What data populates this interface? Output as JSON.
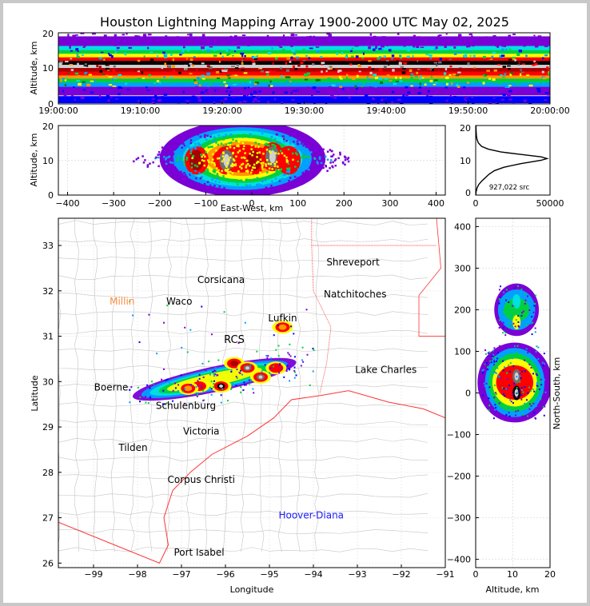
{
  "title": "Houston Lightning Mapping Array 1900-2000 UTC May 02, 2025",
  "colors": {
    "density": [
      "#ffffff",
      "#7a00d6",
      "#0000ff",
      "#00a0ff",
      "#00e0e0",
      "#00d040",
      "#007a10",
      "#ffff00",
      "#ff9900",
      "#ff0000",
      "#aa0000",
      "#000000",
      "#707070",
      "#d0d0d0"
    ],
    "coastline": "#ff3333",
    "counties": "#c4c4c4",
    "city_default": "#000000",
    "city_millin": "#ff8c3c",
    "city_hoover": "#1a1aff"
  },
  "chart_data": [
    {
      "id": "time-height",
      "type": "heatmap",
      "ylabel": "Altitude, km",
      "ylim": [
        0,
        20
      ],
      "yticks": [
        "0",
        "10",
        "20"
      ],
      "xticks": [
        "19:00:00",
        "19:10:00",
        "19:20:00",
        "19:30:00",
        "19:40:00",
        "19:50:00",
        "20:00:00"
      ],
      "layers": [
        {
          "z": 17.5,
          "band": 3.0,
          "level": 1
        },
        {
          "z": 15.5,
          "band": 1.6,
          "level": 4
        },
        {
          "z": 14.5,
          "band": 1.2,
          "level": 5
        },
        {
          "z": 13.5,
          "band": 1.2,
          "level": 7
        },
        {
          "z": 12.5,
          "band": 1.2,
          "level": 9
        },
        {
          "z": 11.3,
          "band": 1.6,
          "level": 11
        },
        {
          "z": 10.5,
          "band": 1.0,
          "level": 13
        },
        {
          "z": 9.5,
          "band": 1.2,
          "level": 10
        },
        {
          "z": 8.5,
          "band": 1.2,
          "level": 9
        },
        {
          "z": 7.5,
          "band": 1.0,
          "level": 8
        },
        {
          "z": 6.5,
          "band": 1.2,
          "level": 5
        },
        {
          "z": 5.3,
          "band": 1.4,
          "level": 3
        },
        {
          "z": 3.6,
          "band": 2.4,
          "level": 1
        },
        {
          "z": 1.2,
          "band": 2.0,
          "level": 2
        }
      ]
    },
    {
      "id": "east-west-altitude",
      "type": "heatmap",
      "xlabel": "East-West, km",
      "ylabel": "Altitude, km",
      "xlim": [
        -420,
        420
      ],
      "ylim": [
        0,
        20
      ],
      "xticks": [
        "−400",
        "−300",
        "−200",
        "−100",
        "0",
        "100",
        "200",
        "300",
        "400"
      ],
      "yticks": [
        "0",
        "10",
        "20"
      ],
      "cores": [
        {
          "x": -120,
          "z": 10,
          "level": 10
        },
        {
          "x": -55,
          "z": 10,
          "level": 12
        },
        {
          "x": 5,
          "z": 10,
          "level": 10
        },
        {
          "x": 45,
          "z": 11,
          "level": 12
        },
        {
          "x": 80,
          "z": 10,
          "level": 9
        }
      ]
    },
    {
      "id": "altitude-histogram",
      "type": "line",
      "xlim": [
        0,
        50000
      ],
      "ylim": [
        0,
        20
      ],
      "xticks": [
        "0",
        "50000"
      ],
      "yticks": [
        "0",
        "10",
        "20"
      ],
      "annotation": "927,022 src",
      "points": [
        [
          50,
          0
        ],
        [
          300,
          1
        ],
        [
          900,
          2
        ],
        [
          2000,
          3
        ],
        [
          4000,
          4
        ],
        [
          6500,
          5
        ],
        [
          9000,
          6
        ],
        [
          12500,
          7
        ],
        [
          19000,
          8
        ],
        [
          30000,
          9
        ],
        [
          44000,
          10
        ],
        [
          48000,
          10.5
        ],
        [
          44000,
          11
        ],
        [
          30000,
          11.7
        ],
        [
          17000,
          12.4
        ],
        [
          8500,
          13.2
        ],
        [
          4000,
          14
        ],
        [
          1800,
          15
        ],
        [
          900,
          16
        ],
        [
          500,
          17
        ],
        [
          350,
          18
        ],
        [
          250,
          19
        ],
        [
          200,
          20
        ]
      ]
    },
    {
      "id": "plan-view",
      "type": "heatmap",
      "xlabel": "Longitude",
      "ylabel": "Latitude",
      "xlim": [
        -99.8,
        -91
      ],
      "ylim": [
        25.9,
        33.6
      ],
      "xticks": [
        "−99",
        "−98",
        "−97",
        "−96",
        "−95",
        "−94",
        "−93",
        "−92",
        "−91"
      ],
      "yticks": [
        "26",
        "27",
        "28",
        "29",
        "30",
        "31",
        "32",
        "33"
      ],
      "cities": [
        {
          "name": "Shreveport",
          "lon": -93.1,
          "lat": 32.56,
          "color": "#000000"
        },
        {
          "name": "Corsicana",
          "lon": -96.1,
          "lat": 32.17,
          "color": "#000000"
        },
        {
          "name": "Millin",
          "lon": -98.35,
          "lat": 31.7,
          "color": "#ff8c3c"
        },
        {
          "name": "Waco",
          "lon": -97.05,
          "lat": 31.7,
          "color": "#000000"
        },
        {
          "name": "Natchitoches",
          "lon": -93.05,
          "lat": 31.86,
          "color": "#000000"
        },
        {
          "name": "Lufkin",
          "lon": -94.7,
          "lat": 31.33,
          "color": "#000000"
        },
        {
          "name": "RCS",
          "lon": -95.8,
          "lat": 30.85,
          "color": "#000000"
        },
        {
          "name": "Lake Charles",
          "lon": -92.35,
          "lat": 30.19,
          "color": "#000000"
        },
        {
          "name": "Boerne",
          "lon": -98.6,
          "lat": 29.8,
          "color": "#000000"
        },
        {
          "name": "Schulenburg",
          "lon": -96.9,
          "lat": 29.4,
          "color": "#000000"
        },
        {
          "name": "Victoria",
          "lon": -96.55,
          "lat": 28.83,
          "color": "#000000"
        },
        {
          "name": "Tilden",
          "lon": -98.1,
          "lat": 28.47,
          "color": "#000000"
        },
        {
          "name": "Corpus Christi",
          "lon": -96.55,
          "lat": 27.77,
          "color": "#000000"
        },
        {
          "name": "Hoover-Diana",
          "lon": -94.05,
          "lat": 26.98,
          "color": "#1a1aff"
        },
        {
          "name": "Port Isabel",
          "lon": -96.6,
          "lat": 26.16,
          "color": "#000000"
        }
      ],
      "cells": [
        {
          "lon": -96.1,
          "lat": 29.9,
          "level": 11
        },
        {
          "lon": -95.8,
          "lat": 30.4,
          "level": 10
        },
        {
          "lon": -95.5,
          "lat": 30.3,
          "level": 12
        },
        {
          "lon": -95.2,
          "lat": 30.1,
          "level": 12
        },
        {
          "lon": -94.85,
          "lat": 30.3,
          "level": 9
        },
        {
          "lon": -96.6,
          "lat": 29.9,
          "level": 9
        },
        {
          "lon": -96.85,
          "lat": 29.85,
          "level": 8
        },
        {
          "lon": -94.7,
          "lat": 31.2,
          "level": 8
        }
      ]
    },
    {
      "id": "altitude-north-south",
      "type": "heatmap",
      "xlabel": "Altitude, km",
      "ylabel": "North-South, km",
      "xlim": [
        0,
        20
      ],
      "ylim": [
        -420,
        420
      ],
      "xticks": [
        "0",
        "10",
        "20"
      ],
      "yticks": [
        "−400",
        "−300",
        "−200",
        "−100",
        "0",
        "100",
        "200",
        "300",
        "400"
      ],
      "cores": [
        {
          "z": 11,
          "y": 40,
          "level": 12
        },
        {
          "z": 11,
          "y": 0,
          "level": 11
        },
        {
          "z": 11,
          "y": 170,
          "level": 7
        },
        {
          "z": 11,
          "y": 220,
          "level": 4
        }
      ]
    }
  ]
}
